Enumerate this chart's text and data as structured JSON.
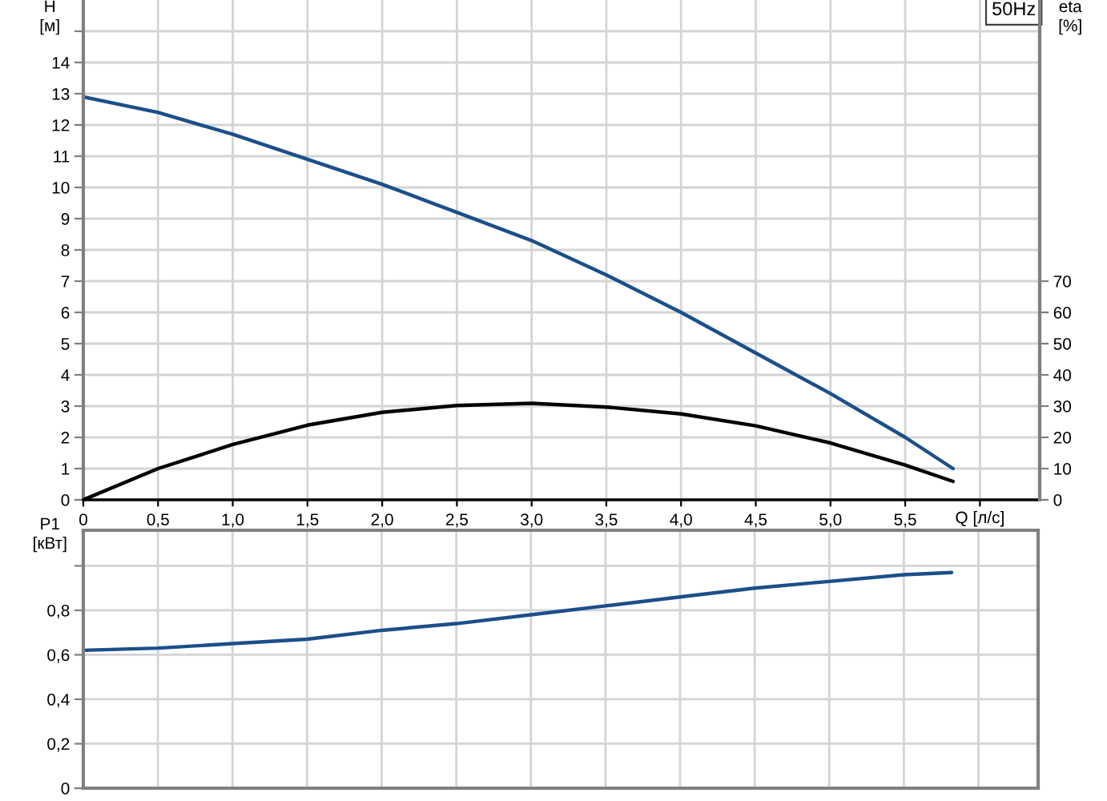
{
  "chart_data": [
    {
      "type": "line",
      "xlabel": "Q [л/с]",
      "ylabel": "H\n[м]",
      "y2label": "eta\n[%]",
      "annotations": [
        "50Hz"
      ],
      "xlim": [
        0,
        6.4
      ],
      "xticks": [
        0,
        {
          "value": 0.5,
          "label": "0,5"
        },
        {
          "value": 1.0,
          "label": "1,0"
        },
        {
          "value": 1.5,
          "label": "1,5"
        },
        {
          "value": 2.0,
          "label": "2,0"
        },
        {
          "value": 2.5,
          "label": "2,5"
        },
        {
          "value": 3.0,
          "label": "3,0"
        },
        {
          "value": 3.5,
          "label": "3,5"
        },
        {
          "value": 4.0,
          "label": "4,0"
        },
        {
          "value": 4.5,
          "label": "4,5"
        },
        {
          "value": 5.0,
          "label": "5,0"
        },
        {
          "value": 5.5,
          "label": "5,5"
        },
        {
          "value": 6.0,
          "label": null
        }
      ],
      "ylim": [
        0,
        16
      ],
      "yticks": [
        0,
        1,
        2,
        3,
        4,
        5,
        6,
        7,
        8,
        9,
        10,
        11,
        12,
        13,
        14,
        {
          "value": 15,
          "label": null
        }
      ],
      "y2lim": [
        0,
        160
      ],
      "y2ticks": [
        0,
        10,
        20,
        30,
        40,
        50,
        60,
        70
      ],
      "grid": true,
      "series": [
        {
          "color": "#1c4f8a",
          "x": [
            0,
            0.5,
            1.0,
            1.5,
            2.0,
            2.5,
            3.0,
            3.5,
            4.0,
            4.5,
            5.0,
            5.5,
            5.82
          ],
          "values": [
            12.9,
            12.4,
            11.7,
            10.9,
            10.1,
            9.2,
            8.3,
            7.2,
            6.0,
            4.7,
            3.4,
            2.0,
            1.0
          ]
        },
        {
          "color": "#000000",
          "axis": "y2",
          "x": [
            0,
            0.5,
            1.0,
            1.5,
            2.0,
            2.5,
            3.0,
            3.5,
            4.0,
            4.5,
            5.0,
            5.5,
            5.82
          ],
          "values": [
            0,
            10,
            17.7,
            23.9,
            28,
            30.2,
            30.9,
            29.7,
            27.5,
            23.7,
            18.2,
            11.1,
            5.9
          ]
        }
      ]
    },
    {
      "type": "line",
      "ylabel": "P1\n[кВт]",
      "tick_labels": "y",
      "xlim": [
        0,
        6.4
      ],
      "xticks": [
        0,
        0.5,
        1.0,
        1.5,
        2.0,
        2.5,
        3.0,
        3.5,
        4.0,
        4.5,
        5.0,
        5.5,
        6.0
      ],
      "ylim": [
        0,
        1.16
      ],
      "yticks": [
        0,
        {
          "value": 0.2,
          "label": "0,2"
        },
        {
          "value": 0.4,
          "label": "0,4"
        },
        {
          "value": 0.6,
          "label": "0,6"
        },
        {
          "value": 0.8,
          "label": "0,8"
        },
        {
          "value": 1.0,
          "label": null
        }
      ],
      "grid": true,
      "series": [
        {
          "color": "#1c4f8a",
          "x": [
            0,
            0.5,
            1.0,
            1.5,
            2.0,
            2.5,
            3.0,
            3.5,
            4.0,
            4.5,
            5.0,
            5.5,
            5.82
          ],
          "values": [
            0.62,
            0.63,
            0.65,
            0.67,
            0.71,
            0.74,
            0.78,
            0.82,
            0.86,
            0.9,
            0.93,
            0.96,
            0.97
          ]
        }
      ]
    }
  ]
}
